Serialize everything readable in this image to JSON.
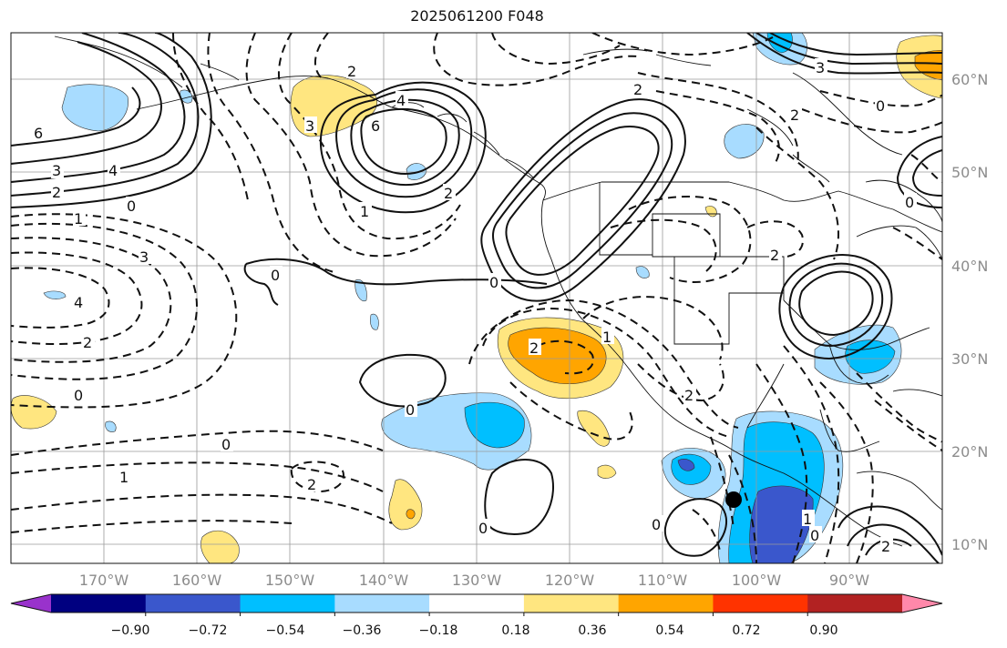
{
  "title": "2025061200 F048",
  "map": {
    "lon_labels": [
      "170°W",
      "160°W",
      "150°W",
      "140°W",
      "130°W",
      "120°W",
      "110°W",
      "100°W",
      "90°W"
    ],
    "lat_labels": [
      "60°N",
      "50°N",
      "40°N",
      "30°N",
      "20°N",
      "10°N"
    ],
    "contour_labels": [
      "6",
      "4",
      "3",
      "2",
      "0",
      "1",
      "4",
      "2",
      "0",
      "1",
      "2",
      "3",
      "4",
      "6",
      "0",
      "2",
      "3",
      "2",
      "1",
      "0",
      "2",
      "0",
      "0",
      "0",
      "1",
      "2",
      "2",
      "2",
      "3",
      "0",
      "0",
      "1",
      "0",
      "2",
      "0",
      "2"
    ],
    "colors": {
      "land": "#ffffff",
      "ocean": "#ffffff",
      "coast": "#111111",
      "grid": "#9a9a9a"
    }
  },
  "colorbar": {
    "tick_labels": [
      "−0.90",
      "−0.72",
      "−0.54",
      "−0.36",
      "−0.18",
      "0.18",
      "0.36",
      "0.54",
      "0.72",
      "0.90"
    ],
    "colors": [
      "#9932cc",
      "#000080",
      "#3a57cc",
      "#00bfff",
      "#a8dcff",
      "#ffffff",
      "#ffe680",
      "#ffa500",
      "#ff3300",
      "#b22222",
      "#ff88aa"
    ]
  }
}
